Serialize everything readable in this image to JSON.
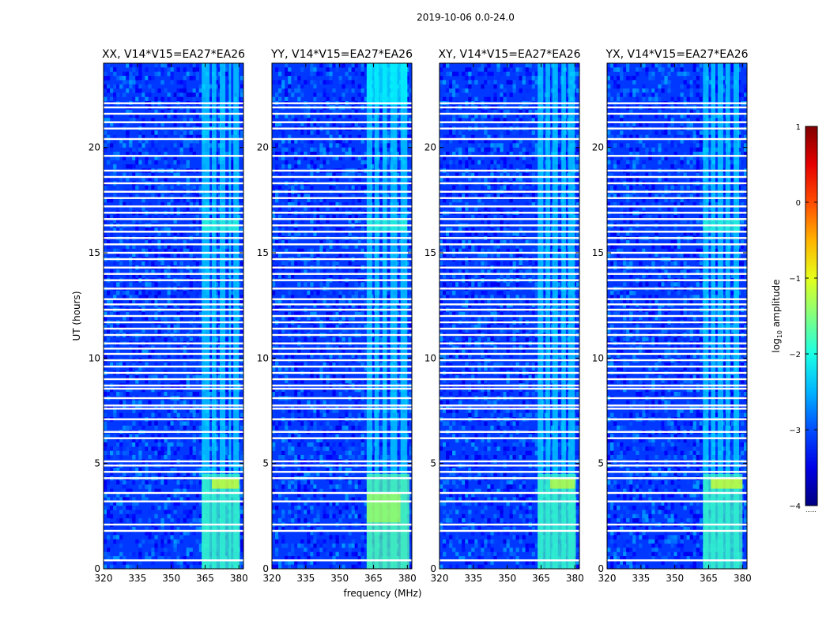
{
  "figure": {
    "suptitle": "2019-10-06 0.0-24.0",
    "xlabel": "frequency (MHz)",
    "ylabel": "UT (hours)",
    "colorbar_label": "log",
    "colorbar_label_sub": "10",
    "colorbar_label_rest": " amplitude",
    "colorbar_footer": "......"
  },
  "chart_data": {
    "type": "heatmap",
    "colormap": "jet",
    "colorbar": {
      "range": [
        -4,
        1
      ],
      "ticks": [
        "1",
        "0",
        "−1",
        "−2",
        "−3",
        "−4"
      ],
      "tick_values": [
        1,
        0,
        -1,
        -2,
        -3,
        -4
      ]
    },
    "x": {
      "label": "frequency (MHz)",
      "range": [
        320,
        382
      ],
      "ticks": [
        320,
        335,
        350,
        365,
        380
      ]
    },
    "y": {
      "label": "UT (hours)",
      "range": [
        0,
        24
      ],
      "ticks": [
        0,
        5,
        10,
        15,
        20
      ]
    },
    "background_value": -3.1,
    "flagged_rows_ut": [
      0.4,
      1.8,
      2.1,
      3.2,
      3.6,
      4.3,
      4.6,
      4.9,
      5.1,
      6.2,
      6.5,
      7.1,
      7.6,
      7.75,
      8.1,
      8.55,
      8.7,
      9.0,
      9.3,
      9.6,
      9.9,
      10.2,
      10.45,
      10.7,
      11.1,
      11.4,
      11.7,
      12.0,
      12.3,
      12.55,
      12.8,
      13.3,
      13.7,
      14.0,
      14.3,
      14.7,
      15.0,
      15.4,
      15.7,
      16.0,
      16.3,
      16.6,
      16.9,
      17.2,
      17.6,
      17.9,
      18.3,
      18.6,
      18.9,
      19.6,
      20.4,
      20.9,
      21.2,
      21.6,
      21.9,
      22.1
    ],
    "panels": [
      {
        "title": "XX, V14*V15=EA27*EA26",
        "rfi_bands_mhz": [
          [
            363.5,
            367.0
          ],
          [
            368.0,
            370.0
          ],
          [
            371.5,
            374.0
          ],
          [
            375.5,
            376.5
          ],
          [
            377.5,
            380.0
          ]
        ],
        "events": [
          {
            "ut": [
              0.0,
              4.5
            ],
            "freq": [
              363.5,
              380.5
            ],
            "value": -1.8
          },
          {
            "ut": [
              3.8,
              4.3
            ],
            "freq": [
              368,
              380
            ],
            "value": -1.0
          },
          {
            "ut": [
              16.0,
              16.6
            ],
            "freq": [
              363.5,
              380
            ],
            "value": -1.9
          }
        ]
      },
      {
        "title": "YY, V14*V15=EA27*EA26",
        "rfi_bands_mhz": [
          [
            362.0,
            364.5
          ],
          [
            365.5,
            367.5
          ],
          [
            369.0,
            371.0
          ],
          [
            372.5,
            375.5
          ],
          [
            377.0,
            380.0
          ]
        ],
        "events": [
          {
            "ut": [
              0.0,
              4.5
            ],
            "freq": [
              362.0,
              381.0
            ],
            "value": -1.7
          },
          {
            "ut": [
              2.2,
              3.6
            ],
            "freq": [
              362.0,
              377.0
            ],
            "value": -1.3
          },
          {
            "ut": [
              22.0,
              24.0
            ],
            "freq": [
              362.0,
              380.0
            ],
            "value": -2.1
          },
          {
            "ut": [
              16.0,
              16.6
            ],
            "freq": [
              362.0,
              380.0
            ],
            "value": -1.9
          }
        ]
      },
      {
        "title": "XY, V14*V15=EA27*EA26",
        "rfi_bands_mhz": [
          [
            363.5,
            366.0
          ],
          [
            367.0,
            369.0
          ],
          [
            370.0,
            372.5
          ],
          [
            374.0,
            376.0
          ],
          [
            377.0,
            380.0
          ]
        ],
        "events": [
          {
            "ut": [
              0.0,
              4.5
            ],
            "freq": [
              363.5,
              380.5
            ],
            "value": -1.8
          },
          {
            "ut": [
              3.8,
              4.3
            ],
            "freq": [
              369,
              380
            ],
            "value": -1.1
          }
        ]
      },
      {
        "title": "YX, V14*V15=EA27*EA26",
        "rfi_bands_mhz": [
          [
            362.5,
            365.0
          ],
          [
            366.0,
            368.0
          ],
          [
            369.0,
            371.5
          ],
          [
            372.5,
            374.5
          ],
          [
            376.0,
            378.5
          ]
        ],
        "events": [
          {
            "ut": [
              0.0,
              4.5
            ],
            "freq": [
              362.5,
              380.0
            ],
            "value": -1.8
          },
          {
            "ut": [
              3.8,
              4.3
            ],
            "freq": [
              366,
              380
            ],
            "value": -1.0
          },
          {
            "ut": [
              16.0,
              16.6
            ],
            "freq": [
              362.5,
              379.0
            ],
            "value": -1.9
          }
        ]
      }
    ]
  }
}
